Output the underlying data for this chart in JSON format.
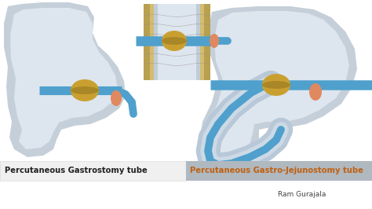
{
  "bg_color": "#ffffff",
  "stomach_color": "#c5cfd9",
  "stomach_inner_color": "#dde6ee",
  "tube_color": "#4fa0cc",
  "balloon_color": "#c9a030",
  "balloon_shadow": "#8a7020",
  "stopper_color": "#e08860",
  "abdom_wall_outer": "#b8a050",
  "abdom_wall_inner": "#d4bc70",
  "wall_blue_outer": "#c0cdd8",
  "wall_blue_inner": "#dde6ee",
  "jejunum_outer": "#b8c8d8",
  "jejunum_inner": "#cddae6",
  "label_left_text": "Percutaneous Gastrostomy tube",
  "label_right_text": "Percutaneous Gastro-Jejunostomy tube",
  "label_left_color": "#222222",
  "label_right_color": "#c06010",
  "label_bg_left": "#f0f0f0",
  "label_bg_right": "#b0b8c0",
  "author_text": "Ram Gurajala",
  "author_color": "#444444",
  "figsize": [
    4.74,
    2.66
  ],
  "dpi": 100
}
